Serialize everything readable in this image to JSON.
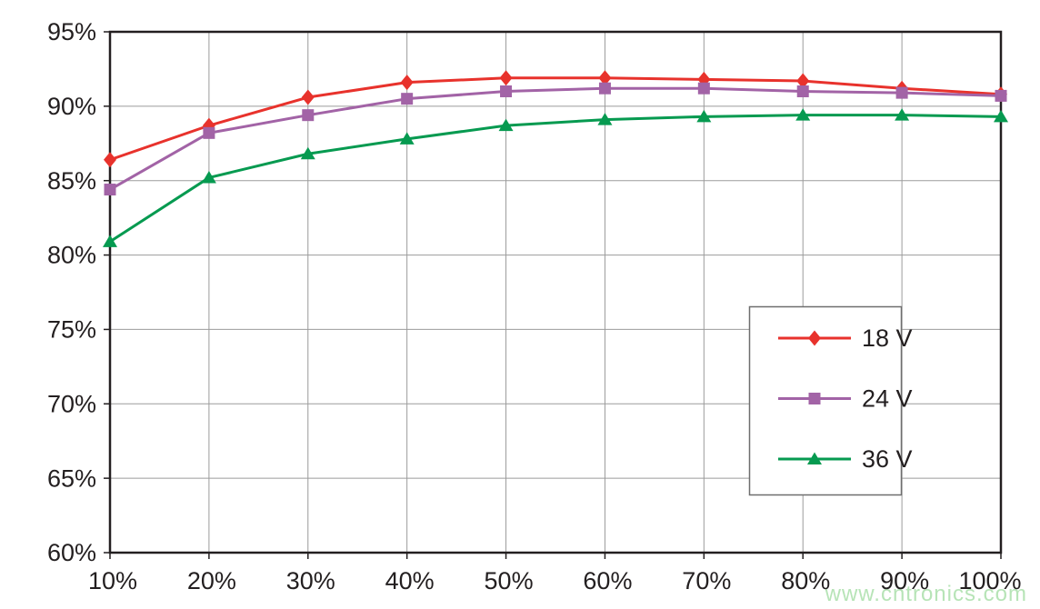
{
  "chart_data": {
    "type": "line",
    "title": "",
    "xlabel": "",
    "ylabel": "",
    "categories": [
      "10%",
      "20%",
      "30%",
      "40%",
      "50%",
      "60%",
      "70%",
      "80%",
      "90%",
      "100%"
    ],
    "series": [
      {
        "name": "18 V",
        "marker": "diamond",
        "color": "#e8322c",
        "values": [
          86.4,
          88.7,
          90.6,
          91.6,
          91.9,
          91.9,
          91.8,
          91.7,
          91.2,
          90.8
        ]
      },
      {
        "name": "24 V",
        "marker": "square",
        "color": "#a263a6",
        "values": [
          84.4,
          88.2,
          89.4,
          90.5,
          91.0,
          91.2,
          91.2,
          91.0,
          90.9,
          90.7
        ]
      },
      {
        "name": "36 V",
        "marker": "triangle",
        "color": "#069a50",
        "values": [
          80.9,
          85.2,
          86.8,
          87.8,
          88.7,
          89.1,
          89.3,
          89.4,
          89.4,
          89.3
        ]
      }
    ],
    "ylim": [
      60,
      95
    ],
    "ytick_step": 5,
    "y_tick_labels": [
      "95%",
      "90%",
      "85%",
      "80%",
      "75%",
      "70%",
      "65%",
      "60%"
    ],
    "grid": true,
    "legend_position": "inside-right",
    "watermark": "www.cntronics.com",
    "colors": {
      "grid": "#9b9b9b",
      "axis": "#231f20",
      "tick_text": "#231f20",
      "legend_border": "#6e6e6e",
      "legend_fill": "#ffffff",
      "watermark": "#b7e4b7"
    }
  }
}
